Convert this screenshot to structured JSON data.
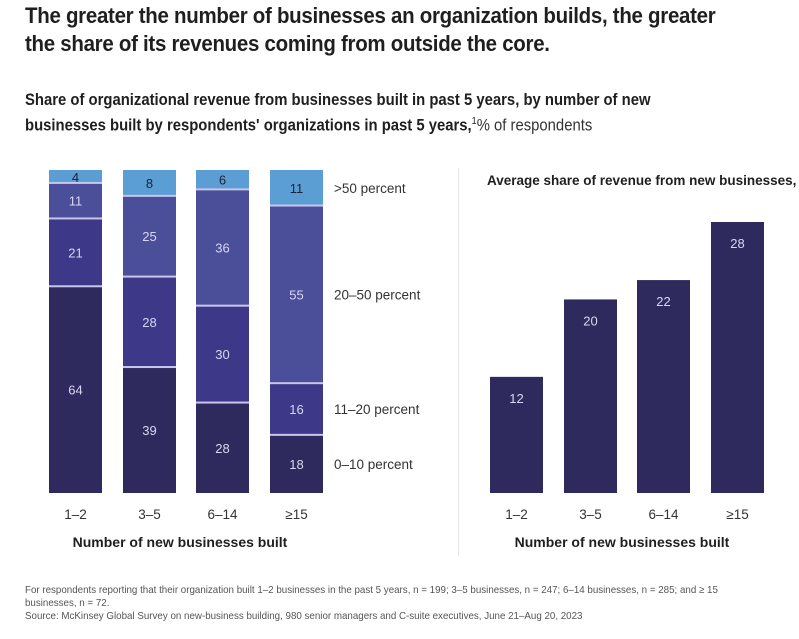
{
  "header": {
    "title": "The greater the number of businesses an organization builds, the greater the share of its revenues coming from outside the core.",
    "subtitle_main": "Share of organizational revenue from businesses built in past 5 years, by number of new businesses built by respondents' organizations in past 5 years,",
    "subtitle_footnote_ref": "1",
    "subtitle_unit": "% of respondents"
  },
  "colors": {
    "seg_0_10": "#2f2a5e",
    "seg_11_20": "#3e3889",
    "seg_20_50": "#4b4f99",
    "seg_gt50": "#5b9ed4",
    "avg_bar": "#2f2a5e",
    "separator": "#c9c6ec",
    "label_light": "#d8d6f2",
    "label_dark": "#1f1f3a"
  },
  "chart_data": [
    {
      "type": "bar",
      "stacked": true,
      "title": "Share of organizational revenue from businesses built in past 5 years",
      "xlabel": "Number of new businesses built",
      "ylabel": "% of respondents",
      "categories": [
        "1–2",
        "3–5",
        "6–14",
        "≥15"
      ],
      "ylim": [
        0,
        100
      ],
      "legend_position": "right",
      "series": [
        {
          "name": "0–10 percent",
          "values": [
            64,
            39,
            28,
            18
          ]
        },
        {
          "name": "11–20 percent",
          "values": [
            21,
            28,
            30,
            16
          ]
        },
        {
          "name": "20–50 percent",
          "values": [
            11,
            25,
            36,
            55
          ]
        },
        {
          "name": ">50 percent",
          "values": [
            4,
            8,
            6,
            11
          ]
        }
      ]
    },
    {
      "type": "bar",
      "stacked": false,
      "title": "Average share of revenue from new businesses,",
      "xlabel": "Number of new businesses built",
      "ylabel": "",
      "categories": [
        "1–2",
        "3–5",
        "6–14",
        "≥15"
      ],
      "ylim": [
        0,
        28
      ],
      "series": [
        {
          "name": "Average share of revenue",
          "values": [
            12,
            20,
            22,
            28
          ]
        }
      ]
    }
  ],
  "footnote": {
    "line1": "For respondents reporting that their organization built 1–2 businesses in the past 5 years, n = 199; 3–5 businesses, n = 247; 6–14 businesses, n =  285; and ≥ 15 businesses, n = 72.",
    "source": "Source: McKinsey Global Survey on new-business building, 980 senior managers and C-suite executives, June 21–Aug 20, 2023"
  }
}
